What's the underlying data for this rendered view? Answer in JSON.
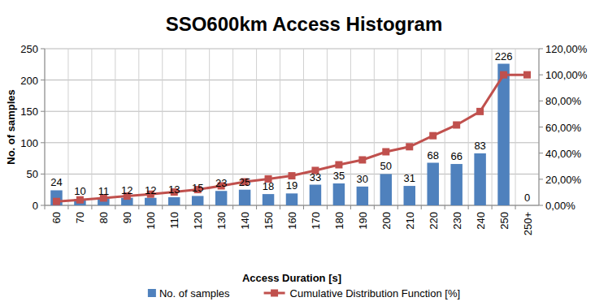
{
  "chart_data": {
    "type": "bar",
    "title": "SSO600km Access Histogram",
    "x_label": "Access Duration [s]",
    "y_label": "No. of samples",
    "categories": [
      "60",
      "70",
      "80",
      "90",
      "100",
      "110",
      "120",
      "130",
      "140",
      "150",
      "160",
      "170",
      "180",
      "190",
      "200",
      "210",
      "220",
      "230",
      "240",
      "250",
      "250+"
    ],
    "series": [
      {
        "name": "No. of samples",
        "type": "bar",
        "color": "#4f81bd",
        "data_labels": true,
        "values": [
          24,
          10,
          11,
          12,
          12,
          13,
          15,
          23,
          25,
          18,
          19,
          33,
          35,
          30,
          50,
          31,
          68,
          66,
          83,
          226,
          0
        ]
      },
      {
        "name": "Cumulative Distribution Function [%]",
        "type": "line",
        "axis": "y2",
        "color": "#c0504d",
        "marker": "square",
        "line_style": "solid",
        "values": [
          2.99,
          4.23,
          5.6,
          7.09,
          8.58,
          10.2,
          12.06,
          14.93,
          18.03,
          20.27,
          22.64,
          26.74,
          31.09,
          34.83,
          41.04,
          44.9,
          53.36,
          61.57,
          71.89,
          100,
          100
        ]
      }
    ],
    "ylim": [
      0,
      250
    ],
    "yticks": [
      0,
      50,
      100,
      150,
      200,
      250
    ],
    "y2lim": [
      0,
      120
    ],
    "y2ticks": [
      {
        "value": 0,
        "label": "0,00%"
      },
      {
        "value": 20,
        "label": "20,00%"
      },
      {
        "value": 40,
        "label": "40,00%"
      },
      {
        "value": 60,
        "label": "60,00%"
      },
      {
        "value": 80,
        "label": "80,00%"
      },
      {
        "value": 100,
        "label": "100,00%"
      },
      {
        "value": 120,
        "label": "120,00%"
      }
    ],
    "grid": true,
    "legend": "bottom"
  }
}
